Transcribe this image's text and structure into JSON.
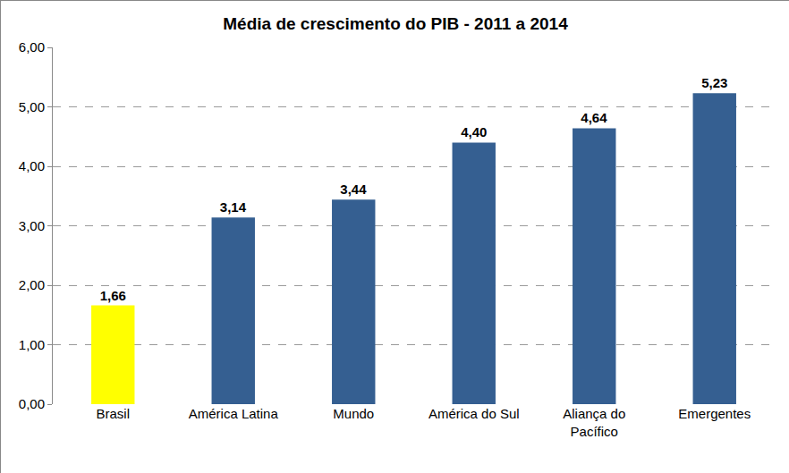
{
  "chart_data": {
    "type": "bar",
    "title": "Média de crescimento do PIB - 2011 a 2014",
    "categories": [
      "Brasil",
      "América Latina",
      "Mundo",
      "América do Sul",
      "Aliança do Pacífico",
      "Emergentes"
    ],
    "values": [
      1.66,
      3.14,
      3.44,
      4.4,
      4.64,
      5.23
    ],
    "value_labels": [
      "1,66",
      "3,14",
      "3,44",
      "4,40",
      "4,64",
      "5,23"
    ],
    "colors": [
      "#ffff00",
      "#355f91",
      "#355f91",
      "#355f91",
      "#355f91",
      "#355f91"
    ],
    "ylim": [
      0,
      6
    ],
    "yticks": [
      {
        "value": 0,
        "label": "0,00"
      },
      {
        "value": 1,
        "label": "1,00"
      },
      {
        "value": 2,
        "label": "2,00"
      },
      {
        "value": 3,
        "label": "3,00"
      },
      {
        "value": 4,
        "label": "4,00"
      },
      {
        "value": 5,
        "label": "5,00"
      },
      {
        "value": 6,
        "label": "6,00"
      }
    ],
    "grid": true,
    "data_labels": true
  }
}
